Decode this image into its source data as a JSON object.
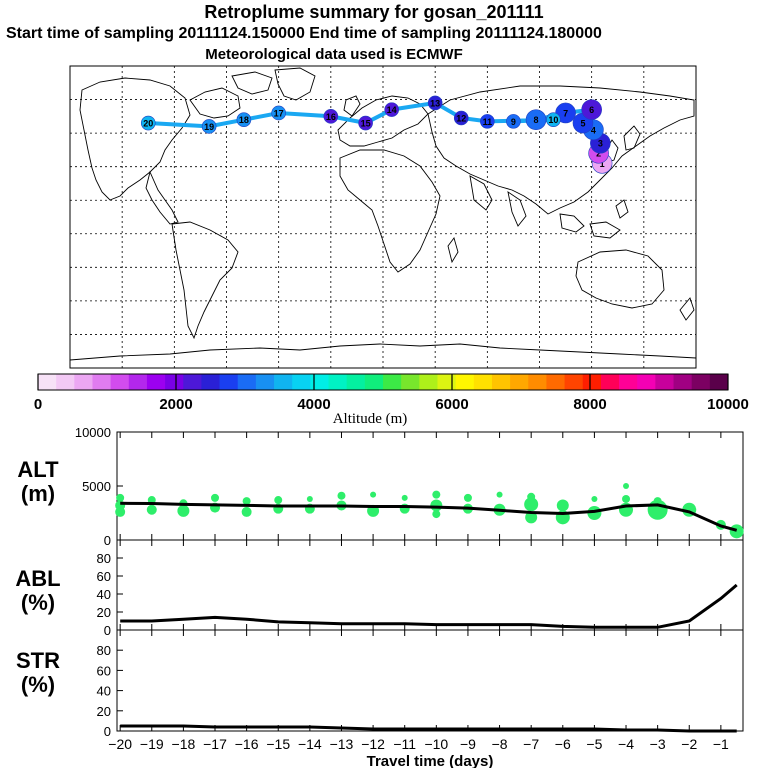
{
  "header": {
    "title": "Retroplume summary for gosan_201111",
    "sampling_line": "Start time of sampling 20111124.150000     End time of sampling 20111124.180000",
    "met_line": "Meteorological data used is ECMWF"
  },
  "colorbar": {
    "label": "Altitude (m)",
    "ticks": [
      "0",
      "2000",
      "4000",
      "6000",
      "8000",
      "10000"
    ],
    "range": [
      0,
      10000
    ],
    "colors": [
      "#f7e2f7",
      "#f3c9f5",
      "#eca7f3",
      "#e07cf0",
      "#d24cee",
      "#b327ec",
      "#9c00f0",
      "#7a00e6",
      "#4d18d8",
      "#2a20d6",
      "#1a3ff0",
      "#1a6cf5",
      "#1890f2",
      "#10b4f0",
      "#08d2f2",
      "#00eee6",
      "#00f2c4",
      "#04f0a0",
      "#10ee7c",
      "#3cea46",
      "#78e62c",
      "#aef01a",
      "#dcf412",
      "#fff600",
      "#ffe100",
      "#ffc400",
      "#ffa800",
      "#ff8c00",
      "#ff6a00",
      "#ff4400",
      "#ff1e00",
      "#ff0058",
      "#ff0096",
      "#f400b4",
      "#c8009c",
      "#a00082",
      "#7c0062",
      "#5a004a"
    ]
  },
  "chart_data": [
    {
      "type": "scatter",
      "panel": "ALT",
      "ylabel": [
        "ALT",
        "(m)"
      ],
      "ylim": [
        0,
        10000
      ],
      "yticks": [
        10000,
        5000,
        0
      ],
      "xlim": [
        -20.1,
        -0.3
      ],
      "line": {
        "x": [
          -20,
          -19,
          -18,
          -17,
          -16,
          -15,
          -14,
          -13,
          -12,
          -11,
          -10,
          -9,
          -8,
          -7,
          -6,
          -5,
          -4,
          -3,
          -2,
          -1,
          -0.5
        ],
        "y": [
          3400,
          3380,
          3300,
          3250,
          3200,
          3150,
          3150,
          3150,
          3100,
          3100,
          3050,
          2950,
          2750,
          2550,
          2450,
          2650,
          3150,
          3250,
          2600,
          1300,
          900
        ]
      },
      "scatter_x": [
        -20.0,
        -20.0,
        -20.0,
        -19.0,
        -19.0,
        -18.0,
        -18.0,
        -17.0,
        -17.0,
        -16.0,
        -16.0,
        -15.0,
        -15.0,
        -14.0,
        -14.0,
        -13.0,
        -13.0,
        -12.0,
        -12.0,
        -11.0,
        -11.0,
        -10.0,
        -10.0,
        -10.0,
        -9.0,
        -9.0,
        -8.0,
        -8.0,
        -7.0,
        -7.0,
        -7.0,
        -6.0,
        -6.0,
        -5.0,
        -5.0,
        -4.0,
        -4.0,
        -4.0,
        -3.0,
        -3.0,
        -2.0,
        -1.0,
        -0.5
      ],
      "scatter_y": [
        3900,
        3200,
        2600,
        3700,
        2800,
        3400,
        2700,
        3900,
        3000,
        3600,
        2600,
        3700,
        2900,
        3800,
        2900,
        4100,
        3200,
        4200,
        2700,
        3900,
        2900,
        4200,
        3200,
        2400,
        3900,
        2900,
        4200,
        2800,
        4000,
        3300,
        2100,
        3200,
        2100,
        3800,
        2500,
        5000,
        3800,
        2800,
        3600,
        2800,
        2800,
        1400,
        800
      ],
      "scatter_size": [
        4,
        5,
        5,
        4,
        5,
        4,
        6,
        4,
        5,
        4,
        5,
        4,
        5,
        3,
        5,
        4,
        5,
        3,
        6,
        3,
        5,
        4,
        6,
        4,
        4,
        5,
        3,
        6,
        4,
        7,
        6,
        6,
        7,
        3,
        7,
        3,
        4,
        7,
        4,
        10,
        7,
        5,
        7
      ]
    },
    {
      "type": "line",
      "panel": "ABL",
      "ylabel": [
        "ABL",
        "(%)"
      ],
      "ylim": [
        0,
        100
      ],
      "yticks": [
        80,
        60,
        40,
        20,
        0
      ],
      "x": [
        -20,
        -19,
        -18,
        -17,
        -16,
        -15,
        -14,
        -13,
        -12,
        -11,
        -10,
        -9,
        -8,
        -7,
        -6,
        -5,
        -4,
        -3,
        -2,
        -1,
        -0.5
      ],
      "y": [
        10,
        10,
        12,
        14,
        12,
        9,
        8,
        7,
        7,
        7,
        6,
        6,
        6,
        6,
        4,
        3,
        3,
        3,
        10,
        35,
        50
      ]
    },
    {
      "type": "line",
      "panel": "STR",
      "ylabel": [
        "STR",
        "(%)"
      ],
      "ylim": [
        0,
        100
      ],
      "yticks": [
        80,
        60,
        40,
        20,
        0
      ],
      "x": [
        -20,
        -19,
        -18,
        -17,
        -16,
        -15,
        -14,
        -13,
        -12,
        -11,
        -10,
        -9,
        -8,
        -7,
        -6,
        -5,
        -4,
        -3,
        -2,
        -1,
        -0.5
      ],
      "y": [
        5,
        5,
        5,
        4,
        4,
        4,
        4,
        3,
        2,
        2,
        2,
        2,
        2,
        2,
        2,
        2,
        1,
        1,
        0,
        0,
        0
      ],
      "xlabel": "Travel time (days)",
      "xticks": [
        "−20",
        "−19",
        "−18",
        "−17",
        "−16",
        "−15",
        "−14",
        "−13",
        "−12",
        "−11",
        "−10",
        "−9",
        "−8",
        "−7",
        "−6",
        "−5",
        "−4",
        "−3",
        "−2",
        "−1"
      ]
    }
  ],
  "map_plumes": [
    {
      "label": "1",
      "lon": 126,
      "lat": 32,
      "alt": 600
    },
    {
      "label": "2",
      "lon": 124,
      "lat": 38,
      "alt": 1200
    },
    {
      "label": "3",
      "lon": 125,
      "lat": 44,
      "alt": 2500
    },
    {
      "label": "4",
      "lon": 121,
      "lat": 52,
      "alt": 3000
    },
    {
      "label": "5",
      "lon": 115,
      "lat": 56,
      "alt": 2700
    },
    {
      "label": "6",
      "lon": 120,
      "lat": 64,
      "alt": 2300
    },
    {
      "label": "7",
      "lon": 105,
      "lat": 62,
      "alt": 2700
    },
    {
      "label": "8",
      "lon": 88,
      "lat": 58,
      "alt": 3000
    },
    {
      "label": "9",
      "lon": 75,
      "lat": 57,
      "alt": 2900
    },
    {
      "label": "10",
      "lon": 98,
      "lat": 58,
      "alt": 3500
    },
    {
      "label": "11",
      "lon": 60,
      "lat": 57,
      "alt": 2800
    },
    {
      "label": "12",
      "lon": 45,
      "lat": 59,
      "alt": 2600
    },
    {
      "label": "13",
      "lon": 30,
      "lat": 68,
      "alt": 2400
    },
    {
      "label": "14",
      "lon": 5,
      "lat": 64,
      "alt": 2200
    },
    {
      "label": "15",
      "lon": -10,
      "lat": 56,
      "alt": 2300
    },
    {
      "label": "16",
      "lon": -30,
      "lat": 60,
      "alt": 2300
    },
    {
      "label": "17",
      "lon": -60,
      "lat": 62,
      "alt": 3200
    },
    {
      "label": "18",
      "lon": -80,
      "lat": 58,
      "alt": 3300
    },
    {
      "label": "19",
      "lon": -100,
      "lat": 54,
      "alt": 3400
    },
    {
      "label": "20",
      "lon": -135,
      "lat": 56,
      "alt": 3500
    }
  ]
}
